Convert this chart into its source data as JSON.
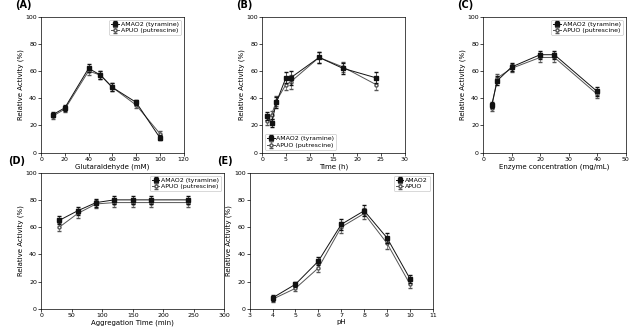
{
  "A": {
    "title": "(A)",
    "xlabel": "Glutaraldehyde (mM)",
    "ylabel": "Relative Activity (%)",
    "xlim": [
      0,
      120
    ],
    "ylim": [
      0,
      100
    ],
    "xticks": [
      0,
      20,
      40,
      60,
      80,
      100,
      120
    ],
    "yticks": [
      0,
      20,
      40,
      60,
      80,
      100
    ],
    "amao2_x": [
      10,
      20,
      40,
      50,
      60,
      80,
      100
    ],
    "amao2_y": [
      28,
      33,
      62,
      57,
      48,
      37,
      11
    ],
    "amao2_err": [
      2,
      2,
      3,
      3,
      3,
      2,
      2
    ],
    "apuo_x": [
      10,
      20,
      40,
      50,
      60,
      80,
      100
    ],
    "apuo_y": [
      27,
      32,
      60,
      57,
      48,
      35,
      14
    ],
    "apuo_err": [
      2,
      2,
      3,
      3,
      3,
      2,
      2
    ],
    "legend1": "AMAO2 (tyramine)",
    "legend2": "APUO (putrescine)"
  },
  "B": {
    "title": "(B)",
    "xlabel": "Time (h)",
    "ylabel": "Relative Activity (%)",
    "xlim": [
      0,
      30
    ],
    "ylim": [
      0,
      100
    ],
    "xticks": [
      0,
      5,
      10,
      15,
      20,
      25,
      30
    ],
    "yticks": [
      0,
      20,
      40,
      60,
      80,
      100
    ],
    "amao2_x": [
      1,
      2,
      3,
      5,
      6,
      12,
      17,
      24
    ],
    "amao2_y": [
      27,
      22,
      37,
      55,
      55,
      70,
      62,
      55
    ],
    "amao2_err": [
      3,
      3,
      4,
      4,
      5,
      4,
      4,
      4
    ],
    "apuo_x": [
      1,
      2,
      3,
      5,
      6,
      12,
      17,
      24
    ],
    "apuo_y": [
      23,
      28,
      38,
      50,
      52,
      70,
      63,
      50
    ],
    "apuo_err": [
      3,
      3,
      4,
      4,
      5,
      4,
      4,
      4
    ],
    "legend1": "AMAO2 (tyramine)",
    "legend2": "APUO (putrescine)"
  },
  "C": {
    "title": "(C)",
    "xlabel": "Enzyme concentration (mg/mL)",
    "ylabel": "Relative Activity (%)",
    "xlim": [
      0,
      50
    ],
    "ylim": [
      0,
      100
    ],
    "xticks": [
      0,
      10,
      20,
      30,
      40,
      50
    ],
    "yticks": [
      0,
      20,
      40,
      60,
      80,
      100
    ],
    "amao2_x": [
      3,
      5,
      10,
      20,
      25,
      40
    ],
    "amao2_y": [
      35,
      53,
      63,
      72,
      72,
      45
    ],
    "amao2_err": [
      2,
      3,
      3,
      3,
      3,
      3
    ],
    "apuo_x": [
      3,
      5,
      10,
      20,
      25,
      40
    ],
    "apuo_y": [
      33,
      55,
      62,
      70,
      70,
      43
    ],
    "apuo_err": [
      2,
      3,
      3,
      3,
      3,
      3
    ],
    "legend1": "AMAO2 (tyramine)",
    "legend2": "APUO (putrescine)"
  },
  "D": {
    "title": "(D)",
    "xlabel": "Aggregation Time (min)",
    "ylabel": "Relative Activity (%)",
    "xlim": [
      0,
      300
    ],
    "ylim": [
      0,
      100
    ],
    "xticks": [
      0,
      50,
      100,
      150,
      200,
      250,
      300
    ],
    "yticks": [
      0,
      20,
      40,
      60,
      80,
      100
    ],
    "amao2_x": [
      30,
      60,
      90,
      120,
      150,
      180,
      240
    ],
    "amao2_y": [
      65,
      72,
      78,
      80,
      80,
      80,
      80
    ],
    "amao2_err": [
      3,
      3,
      3,
      3,
      3,
      3,
      3
    ],
    "apuo_x": [
      30,
      60,
      90,
      120,
      150,
      180,
      240
    ],
    "apuo_y": [
      60,
      70,
      77,
      78,
      78,
      78,
      78
    ],
    "apuo_err": [
      3,
      3,
      3,
      3,
      3,
      3,
      3
    ],
    "legend1": "AMAO2 (tyramine)",
    "legend2": "APUO (putrescine)"
  },
  "E": {
    "title": "(E)",
    "xlabel": "pH",
    "ylabel": "Relative Activity (%)",
    "xlim": [
      3,
      11
    ],
    "ylim": [
      0,
      100
    ],
    "xticks": [
      3,
      4,
      5,
      6,
      7,
      8,
      9,
      10,
      11
    ],
    "yticks": [
      0,
      20,
      40,
      60,
      80,
      100
    ],
    "amao2_x": [
      4,
      5,
      6,
      7,
      8,
      9,
      10
    ],
    "amao2_y": [
      8,
      18,
      35,
      62,
      72,
      52,
      22
    ],
    "amao2_err": [
      2,
      2,
      3,
      4,
      4,
      4,
      3
    ],
    "apuo_x": [
      4,
      5,
      6,
      7,
      8,
      9,
      10
    ],
    "apuo_y": [
      7,
      15,
      30,
      60,
      70,
      48,
      18
    ],
    "apuo_err": [
      2,
      2,
      3,
      4,
      4,
      4,
      3
    ],
    "legend1": "AMAO2",
    "legend2": "APUO"
  },
  "marker_filled": "s",
  "marker_open": "o",
  "line_color_filled": "#111111",
  "line_color_open": "#555555",
  "fontsize_label": 5,
  "fontsize_tick": 4.5,
  "fontsize_title": 7,
  "fontsize_legend": 4.5
}
